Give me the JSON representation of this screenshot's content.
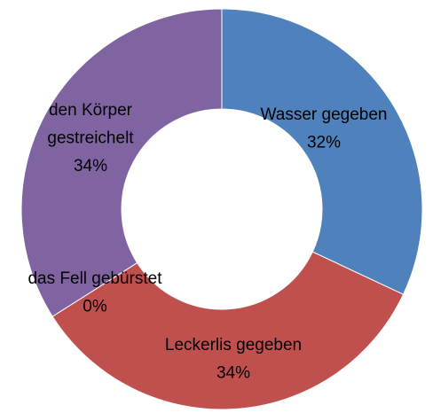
{
  "chart_data": {
    "type": "donut",
    "categories": [
      "Wasser gegeben",
      "Leckerlis gegeben",
      "das Fell gebürstet",
      "den Körper gestreichelt"
    ],
    "values": [
      32,
      34,
      0,
      34
    ],
    "value_labels": [
      "32%",
      "34%",
      "0%",
      "34%"
    ],
    "colors": [
      "#4f81bd",
      "#c0504d",
      "#9bbb59",
      "#8064a2"
    ]
  }
}
